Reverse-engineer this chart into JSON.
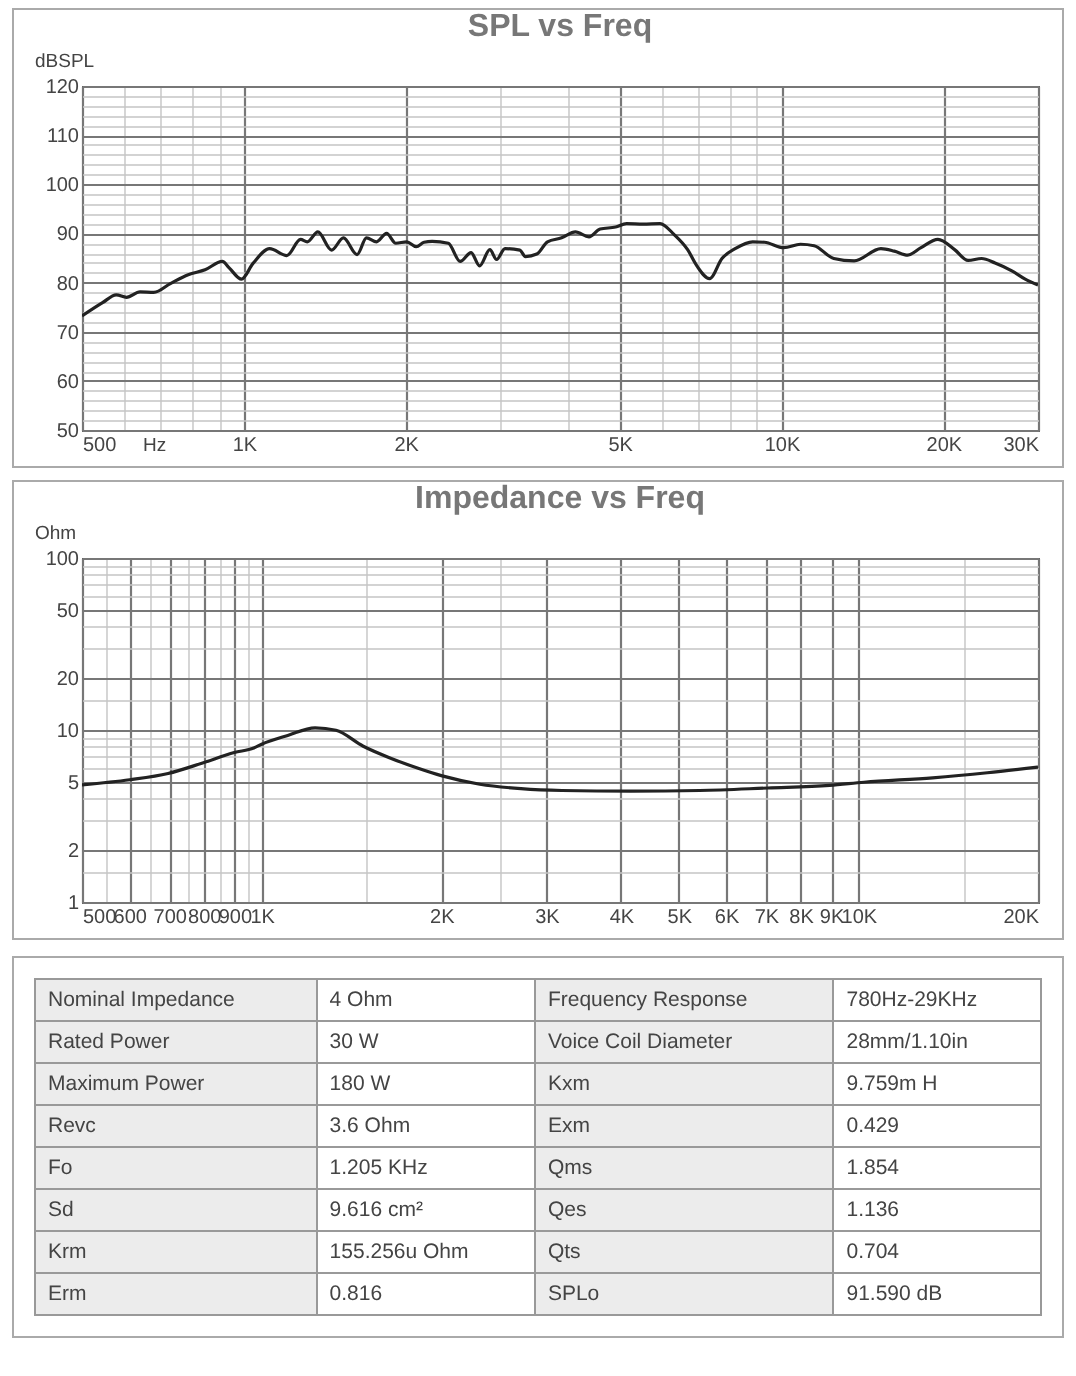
{
  "chart_data": [
    {
      "type": "line",
      "title": "SPL vs Freq",
      "xlabel": "Hz",
      "ylabel": "dBSPL",
      "log": "x",
      "grid": true,
      "legend": false,
      "x": [
        500,
        546,
        579,
        605,
        641,
        680,
        730,
        788,
        847,
        912,
        939,
        990,
        1040,
        1117,
        1202,
        1275,
        1312,
        1373,
        1456,
        1532,
        1624,
        1691,
        1765,
        1843,
        1917,
        2009,
        2092,
        2164,
        2240,
        2400,
        2526,
        2646,
        2744,
        2868,
        2952,
        3060,
        3262,
        3340,
        3507,
        3671,
        3900,
        4138,
        4385,
        4600,
        4914,
        5150,
        5530,
        5945,
        6310,
        6690,
        6960,
        7350,
        7750,
        8200,
        8840,
        9300,
        10100,
        10850,
        11500,
        12510,
        13650,
        15310,
        16210,
        17170,
        18180,
        19540,
        20990,
        22240,
        23560,
        24960,
        26820,
        28400,
        30000
      ],
      "series": [
        {
          "color": "#222222",
          "values": [
            73.2,
            75.9,
            77.5,
            77.0,
            78.1,
            78.0,
            79.8,
            81.6,
            82.6,
            84.3,
            83.0,
            80.7,
            83.9,
            86.9,
            85.5,
            88.8,
            88.3,
            90.3,
            86.6,
            89.1,
            85.7,
            89.1,
            88.3,
            90.0,
            88.0,
            88.3,
            87.3,
            88.2,
            88.4,
            88.0,
            84.3,
            86.1,
            83.4,
            86.7,
            84.7,
            86.9,
            86.6,
            85.3,
            85.8,
            88.3,
            89.1,
            90.3,
            89.3,
            90.9,
            91.3,
            92.0,
            91.9,
            92.0,
            89.8,
            86.7,
            83.4,
            80.8,
            84.9,
            86.9,
            88.3,
            88.2,
            87.1,
            87.8,
            87.5,
            84.9,
            84.4,
            86.9,
            86.4,
            85.6,
            87.1,
            88.8,
            86.7,
            84.5,
            84.9,
            84.0,
            82.4,
            80.7,
            79.5
          ]
        }
      ],
      "xlim": [
        500,
        30000
      ],
      "xticks": [
        500,
        {
          "value": 600,
          "label": null
        },
        {
          "value": 700,
          "label": null
        },
        {
          "value": 800,
          "label": null
        },
        {
          "value": 900,
          "label": null
        },
        {
          "value": 1000,
          "label": "1K"
        },
        {
          "value": 2000,
          "label": "2K"
        },
        {
          "value": 3000,
          "label": null
        },
        {
          "value": 4000,
          "label": null
        },
        {
          "value": 5000,
          "label": "5K"
        },
        {
          "value": 6000,
          "label": null
        },
        {
          "value": 7000,
          "label": null
        },
        {
          "value": 8000,
          "label": null
        },
        {
          "value": 9000,
          "label": null
        },
        {
          "value": 10000,
          "label": "10K"
        },
        {
          "value": 20000,
          "label": "20K"
        },
        {
          "value": 30000,
          "label": "30K"
        }
      ],
      "ylim": [
        50,
        120
      ],
      "yticks": [
        50,
        {
          "value": 52,
          "label": null
        },
        {
          "value": 54,
          "label": null
        },
        {
          "value": 56,
          "label": null
        },
        {
          "value": 58,
          "label": null
        },
        60,
        {
          "value": 62,
          "label": null
        },
        {
          "value": 64,
          "label": null
        },
        {
          "value": 66,
          "label": null
        },
        {
          "value": 68,
          "label": null
        },
        70,
        {
          "value": 72,
          "label": null
        },
        {
          "value": 74,
          "label": null
        },
        {
          "value": 76,
          "label": null
        },
        {
          "value": 78,
          "label": null
        },
        80,
        {
          "value": 82,
          "label": null
        },
        {
          "value": 84,
          "label": null
        },
        {
          "value": 86,
          "label": null
        },
        {
          "value": 88,
          "label": null
        },
        90,
        {
          "value": 92,
          "label": null
        },
        {
          "value": 94,
          "label": null
        },
        {
          "value": 96,
          "label": null
        },
        {
          "value": 98,
          "label": null
        },
        100,
        {
          "value": 102,
          "label": null
        },
        {
          "value": 104,
          "label": null
        },
        {
          "value": 106,
          "label": null
        },
        {
          "value": 108,
          "label": null
        },
        110,
        {
          "value": 112,
          "label": null
        },
        {
          "value": 114,
          "label": null
        },
        {
          "value": 116,
          "label": null
        },
        {
          "value": 118,
          "label": null
        },
        120
      ]
    },
    {
      "type": "line",
      "title": "Impedance vs Freq",
      "ylabel": "Ohm",
      "log": "xy",
      "grid": true,
      "legend": false,
      "x": [
        500,
        601,
        697,
        794,
        900,
        970,
        1000,
        1106,
        1229,
        1332,
        1480,
        1645,
        1829,
        2007,
        2321,
        2720,
        3187,
        4155,
        5420,
        7054,
        8950,
        10220,
        13320,
        16450,
        20000
      ],
      "series": [
        {
          "color": "#222222",
          "values": [
            4.8,
            5.14,
            5.59,
            6.41,
            7.4,
            7.85,
            8.27,
            9.3,
            10.3,
            9.96,
            8.05,
            6.86,
            5.99,
            5.41,
            4.84,
            4.56,
            4.45,
            4.41,
            4.45,
            4.6,
            4.76,
            4.97,
            5.27,
            5.64,
            6.09
          ]
        }
      ],
      "xlim": [
        500,
        20000
      ],
      "xticks": [
        500,
        {
          "value": 550,
          "label": null
        },
        600,
        {
          "value": 650,
          "label": null
        },
        700,
        {
          "value": 750,
          "label": null
        },
        800,
        {
          "value": 850,
          "label": null
        },
        900,
        {
          "value": 950,
          "label": null
        },
        {
          "value": 1000,
          "label": "1K"
        },
        {
          "value": 1500,
          "label": null
        },
        {
          "value": 2000,
          "label": "2K"
        },
        {
          "value": 2500,
          "label": null
        },
        {
          "value": 3000,
          "label": "3K"
        },
        {
          "value": 4000,
          "label": "4K"
        },
        {
          "value": 5000,
          "label": "5K"
        },
        {
          "value": 6000,
          "label": "6K"
        },
        {
          "value": 7000,
          "label": "7K"
        },
        {
          "value": 8000,
          "label": "8K"
        },
        {
          "value": 9000,
          "label": "9K"
        },
        {
          "value": 10000,
          "label": "10K"
        },
        {
          "value": 15000,
          "label": null
        },
        {
          "value": 20000,
          "label": "20K"
        }
      ],
      "ylim": [
        1,
        100
      ],
      "yticks": [
        1,
        {
          "value": 1.5,
          "label": null
        },
        2,
        {
          "value": 3,
          "label": null
        },
        {
          "value": 4,
          "label": null
        },
        5,
        {
          "value": 6,
          "label": null
        },
        {
          "value": 7,
          "label": null
        },
        {
          "value": 8,
          "label": null
        },
        {
          "value": 9,
          "label": null
        },
        10,
        {
          "value": 15,
          "label": null
        },
        20,
        {
          "value": 30,
          "label": null
        },
        {
          "value": 40,
          "label": null
        },
        50,
        {
          "value": 60,
          "label": null
        },
        {
          "value": 70,
          "label": null
        },
        {
          "value": 80,
          "label": null
        },
        {
          "value": 90,
          "label": null
        },
        100
      ]
    },
    {
      "type": "other",
      "annotations": [
        "Nominal Impedance",
        "4 Ohm",
        "Frequency Response",
        "780Hz-29KHz",
        "Rated Power",
        "30 W",
        "Voice Coil Diameter",
        "28mm/1.10in",
        "Maximum Power",
        "180 W",
        "Kxm",
        "9.759m H",
        "Revc",
        "3.6 Ohm",
        "Exm",
        "0.429",
        "Fo",
        "1.205 KHz",
        "Qms",
        "1.854",
        "Sd",
        "9.616 cm²",
        "Qes",
        "1.136",
        "Krm",
        "155.256u Ohm",
        "Qts",
        "0.704",
        "Erm",
        "0.816",
        "SPLo",
        "91.590 dB"
      ]
    }
  ]
}
